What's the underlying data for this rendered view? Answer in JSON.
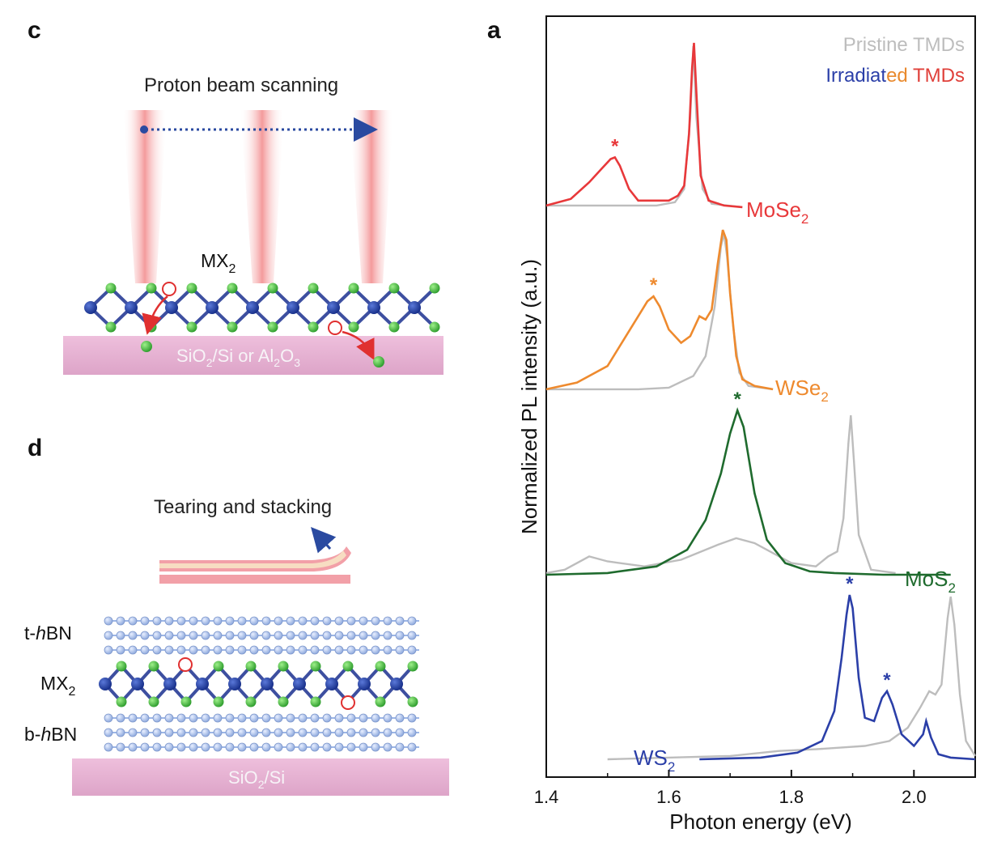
{
  "panel_c": {
    "letter": "c",
    "caption": "Proton beam scanning",
    "material_label_main": "MX",
    "material_label_sub": "2",
    "substrate": {
      "parts": [
        "SiO",
        "2",
        "/Si or Al",
        "2",
        "O",
        "3"
      ]
    },
    "colors": {
      "beam": "#f28a8a",
      "substrate": "#e8b4d4",
      "metal_atom": "#1f3a9a",
      "chalcogen_atom": "#3cb83c",
      "vacancy": "#e03030",
      "arrow": "#2a4aa0"
    }
  },
  "panel_d": {
    "letter": "d",
    "caption": "Tearing and stacking",
    "layers": {
      "top": {
        "prefix": "t-",
        "italic": "h",
        "suffix": "BN"
      },
      "middle": {
        "main": "MX",
        "sub": "2"
      },
      "bottom": {
        "prefix": "b-",
        "italic": "h",
        "suffix": "BN"
      }
    },
    "substrate": {
      "parts": [
        "SiO",
        "2",
        "/Si"
      ]
    },
    "colors": {
      "hbn": "#9db6e6",
      "strip_outer": "#f2a0a8",
      "strip_inner": "#f6dcc0"
    }
  },
  "panel_a": {
    "letter": "a",
    "legend": {
      "line1": "Pristine TMDs",
      "line2_parts": [
        {
          "text": "Irradiat",
          "color": "#2b3fa8"
        },
        {
          "text": "ed",
          "color": "#e98a2e"
        },
        {
          "text": " TMDs",
          "color": "#e0403a"
        }
      ],
      "pristine_color": "#bdbdbd"
    },
    "chart_data": {
      "type": "line",
      "title": "",
      "xlabel": "Photon energy (eV)",
      "ylabel": "Normalized PL intensity (a.u.)",
      "xlim": [
        1.4,
        2.1
      ],
      "xticks": [
        "1.4",
        "1.6",
        "1.8",
        "2.0"
      ],
      "xtick_values": [
        1.4,
        1.6,
        1.8,
        2.0
      ],
      "stacked_offset_spectra": true,
      "series": [
        {
          "name": "MoSe",
          "name_sub": "2",
          "color": "#e8383a",
          "pristine": [
            [
              1.4,
              0.02
            ],
            [
              1.5,
              0.02
            ],
            [
              1.58,
              0.02
            ],
            [
              1.61,
              0.04
            ],
            [
              1.625,
              0.12
            ],
            [
              1.635,
              0.55
            ],
            [
              1.64,
              0.98
            ],
            [
              1.645,
              0.55
            ],
            [
              1.655,
              0.12
            ],
            [
              1.67,
              0.03
            ],
            [
              1.72,
              0.01
            ]
          ],
          "irradiated": [
            [
              1.4,
              0.02
            ],
            [
              1.44,
              0.06
            ],
            [
              1.47,
              0.16
            ],
            [
              1.49,
              0.24
            ],
            [
              1.505,
              0.3
            ],
            [
              1.512,
              0.31
            ],
            [
              1.52,
              0.26
            ],
            [
              1.535,
              0.12
            ],
            [
              1.55,
              0.05
            ],
            [
              1.6,
              0.05
            ],
            [
              1.615,
              0.08
            ],
            [
              1.625,
              0.14
            ],
            [
              1.633,
              0.45
            ],
            [
              1.638,
              0.85
            ],
            [
              1.641,
              1.0
            ],
            [
              1.645,
              0.7
            ],
            [
              1.652,
              0.2
            ],
            [
              1.665,
              0.05
            ],
            [
              1.69,
              0.02
            ],
            [
              1.72,
              0.01
            ]
          ],
          "irradiated_x_end": 1.72,
          "peak_marker_x": 1.512
        },
        {
          "name": "WSe",
          "name_sub": "2",
          "color": "#ee8a2e",
          "pristine": [
            [
              1.4,
              0.02
            ],
            [
              1.55,
              0.02
            ],
            [
              1.6,
              0.03
            ],
            [
              1.64,
              0.1
            ],
            [
              1.66,
              0.22
            ],
            [
              1.675,
              0.52
            ],
            [
              1.685,
              0.88
            ],
            [
              1.69,
              0.96
            ],
            [
              1.695,
              0.82
            ],
            [
              1.705,
              0.4
            ],
            [
              1.715,
              0.12
            ],
            [
              1.73,
              0.04
            ],
            [
              1.77,
              0.02
            ]
          ],
          "irradiated": [
            [
              1.4,
              0.02
            ],
            [
              1.45,
              0.06
            ],
            [
              1.5,
              0.16
            ],
            [
              1.53,
              0.34
            ],
            [
              1.55,
              0.46
            ],
            [
              1.565,
              0.55
            ],
            [
              1.575,
              0.58
            ],
            [
              1.585,
              0.52
            ],
            [
              1.6,
              0.38
            ],
            [
              1.62,
              0.3
            ],
            [
              1.635,
              0.34
            ],
            [
              1.65,
              0.46
            ],
            [
              1.66,
              0.44
            ],
            [
              1.67,
              0.5
            ],
            [
              1.68,
              0.78
            ],
            [
              1.688,
              0.98
            ],
            [
              1.694,
              0.92
            ],
            [
              1.7,
              0.6
            ],
            [
              1.71,
              0.22
            ],
            [
              1.72,
              0.08
            ],
            [
              1.74,
              0.04
            ],
            [
              1.77,
              0.02
            ]
          ],
          "irradiated_x_end": 1.77,
          "peak_marker_x": 1.575
        },
        {
          "name": "MoS",
          "name_sub": "2",
          "color": "#1f6b2e",
          "pristine": [
            [
              1.4,
              0.02
            ],
            [
              1.43,
              0.04
            ],
            [
              1.47,
              0.12
            ],
            [
              1.5,
              0.09
            ],
            [
              1.56,
              0.06
            ],
            [
              1.62,
              0.1
            ],
            [
              1.68,
              0.19
            ],
            [
              1.71,
              0.23
            ],
            [
              1.74,
              0.2
            ],
            [
              1.8,
              0.08
            ],
            [
              1.84,
              0.06
            ],
            [
              1.86,
              0.12
            ],
            [
              1.875,
              0.15
            ],
            [
              1.885,
              0.35
            ],
            [
              1.893,
              0.8
            ],
            [
              1.897,
              0.97
            ],
            [
              1.902,
              0.7
            ],
            [
              1.91,
              0.25
            ],
            [
              1.93,
              0.04
            ],
            [
              1.97,
              0.02
            ]
          ],
          "irradiated": [
            [
              1.4,
              0.01
            ],
            [
              1.5,
              0.02
            ],
            [
              1.58,
              0.06
            ],
            [
              1.63,
              0.16
            ],
            [
              1.66,
              0.34
            ],
            [
              1.685,
              0.62
            ],
            [
              1.7,
              0.86
            ],
            [
              1.712,
              1.0
            ],
            [
              1.722,
              0.9
            ],
            [
              1.74,
              0.5
            ],
            [
              1.76,
              0.22
            ],
            [
              1.79,
              0.08
            ],
            [
              1.83,
              0.03
            ],
            [
              1.87,
              0.02
            ],
            [
              1.95,
              0.01
            ],
            [
              2.06,
              0.01
            ]
          ],
          "irradiated_x_end": 2.06,
          "peak_marker_x": 1.712
        },
        {
          "name": "WS",
          "name_sub": "2",
          "color": "#2b3fa8",
          "pristine": [
            [
              1.5,
              0.01
            ],
            [
              1.6,
              0.02
            ],
            [
              1.7,
              0.03
            ],
            [
              1.78,
              0.06
            ],
            [
              1.84,
              0.07
            ],
            [
              1.88,
              0.08
            ],
            [
              1.92,
              0.09
            ],
            [
              1.96,
              0.12
            ],
            [
              1.99,
              0.2
            ],
            [
              2.01,
              0.32
            ],
            [
              2.025,
              0.42
            ],
            [
              2.035,
              0.4
            ],
            [
              2.045,
              0.46
            ],
            [
              2.055,
              0.86
            ],
            [
              2.06,
              0.99
            ],
            [
              2.066,
              0.82
            ],
            [
              2.075,
              0.4
            ],
            [
              2.085,
              0.12
            ],
            [
              2.1,
              0.03
            ]
          ],
          "irradiated": [
            [
              1.65,
              0.01
            ],
            [
              1.75,
              0.02
            ],
            [
              1.81,
              0.05
            ],
            [
              1.85,
              0.12
            ],
            [
              1.87,
              0.3
            ],
            [
              1.882,
              0.62
            ],
            [
              1.89,
              0.88
            ],
            [
              1.895,
              1.0
            ],
            [
              1.9,
              0.92
            ],
            [
              1.91,
              0.5
            ],
            [
              1.92,
              0.26
            ],
            [
              1.935,
              0.24
            ],
            [
              1.948,
              0.38
            ],
            [
              1.956,
              0.42
            ],
            [
              1.965,
              0.34
            ],
            [
              1.98,
              0.16
            ],
            [
              2.0,
              0.09
            ],
            [
              2.015,
              0.16
            ],
            [
              2.02,
              0.24
            ],
            [
              2.028,
              0.14
            ],
            [
              2.04,
              0.04
            ],
            [
              2.06,
              0.02
            ],
            [
              2.1,
              0.01
            ]
          ],
          "irradiated_x_end": 2.1,
          "peak_marker_x": [
            1.895,
            1.956
          ]
        }
      ],
      "grid": false
    }
  }
}
